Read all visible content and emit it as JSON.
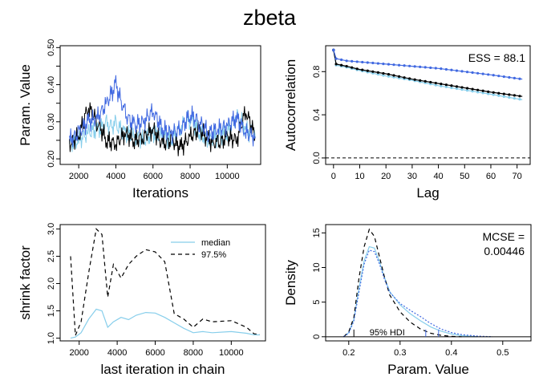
{
  "page_title": "zbeta",
  "colors": {
    "chain1": "#87CEEB",
    "chain2": "#000000",
    "chain3": "#4169E1",
    "frame": "#000000"
  },
  "chart_data": [
    {
      "id": "trace",
      "type": "line",
      "xlabel": "Iterations",
      "ylabel": "Param. Value",
      "xticks": [
        2000,
        4000,
        6000,
        8000,
        10000
      ],
      "yticks": [
        0.2,
        0.25,
        0.3,
        0.35,
        0.4,
        0.45,
        0.5
      ],
      "ytick_labels": [
        "0.20",
        "",
        "0.30",
        "",
        "0.40",
        "",
        "0.50"
      ],
      "xlim": [
        1000,
        11800
      ],
      "ylim": [
        0.185,
        0.505
      ],
      "series": [
        {
          "color": "#87CEEB",
          "x": [
            1500,
            2000,
            2500,
            3000,
            3500,
            4000,
            4500,
            5000,
            5500,
            6000,
            6500,
            7000,
            7500,
            8000,
            8500,
            9000,
            9500,
            10000,
            10500,
            11000,
            11500
          ],
          "y": [
            0.24,
            0.25,
            0.27,
            0.28,
            0.29,
            0.29,
            0.27,
            0.26,
            0.25,
            0.27,
            0.26,
            0.25,
            0.29,
            0.31,
            0.27,
            0.25,
            0.26,
            0.27,
            0.32,
            0.28,
            0.26
          ]
        },
        {
          "color": "#000000",
          "x": [
            1500,
            2000,
            2500,
            3000,
            3500,
            4000,
            4500,
            5000,
            5500,
            6000,
            6500,
            7000,
            7500,
            8000,
            8500,
            9000,
            9500,
            10000,
            10500,
            11000,
            11500
          ],
          "y": [
            0.24,
            0.26,
            0.34,
            0.3,
            0.25,
            0.24,
            0.27,
            0.25,
            0.26,
            0.28,
            0.24,
            0.25,
            0.23,
            0.26,
            0.28,
            0.25,
            0.24,
            0.26,
            0.25,
            0.33,
            0.26
          ]
        },
        {
          "color": "#4169E1",
          "x": [
            1500,
            2000,
            2500,
            3000,
            3500,
            4000,
            4500,
            5000,
            5500,
            6000,
            6500,
            7000,
            7500,
            8000,
            8500,
            9000,
            9500,
            10000,
            10500,
            11000,
            11500
          ],
          "y": [
            0.25,
            0.27,
            0.3,
            0.31,
            0.35,
            0.4,
            0.32,
            0.29,
            0.3,
            0.33,
            0.28,
            0.27,
            0.28,
            0.32,
            0.3,
            0.27,
            0.28,
            0.29,
            0.31,
            0.27,
            0.26
          ]
        }
      ]
    },
    {
      "id": "autocorrelation",
      "type": "line",
      "xlabel": "Lag",
      "ylabel": "Autocorrelation",
      "xticks": [
        0,
        10,
        20,
        30,
        40,
        50,
        60,
        70
      ],
      "yticks": [
        0.0,
        0.4,
        0.8
      ],
      "ytick_labels": [
        "0.0",
        "0.4",
        "0.8"
      ],
      "xlim": [
        -3,
        75
      ],
      "ylim": [
        -0.06,
        1.04
      ],
      "annotation": "ESS = 88.1",
      "reference_line": 0,
      "series": [
        {
          "color": "#87CEEB",
          "x": [
            0,
            1,
            5,
            10,
            20,
            30,
            40,
            50,
            60,
            72
          ],
          "y": [
            1.0,
            0.86,
            0.84,
            0.81,
            0.76,
            0.72,
            0.67,
            0.63,
            0.59,
            0.54
          ]
        },
        {
          "color": "#000000",
          "x": [
            0,
            1,
            5,
            10,
            20,
            30,
            40,
            50,
            60,
            72
          ],
          "y": [
            1.0,
            0.87,
            0.85,
            0.82,
            0.78,
            0.73,
            0.69,
            0.65,
            0.61,
            0.57
          ]
        },
        {
          "color": "#4169E1",
          "x": [
            0,
            1,
            5,
            10,
            20,
            30,
            40,
            50,
            60,
            72
          ],
          "y": [
            1.0,
            0.92,
            0.9,
            0.89,
            0.87,
            0.85,
            0.83,
            0.8,
            0.77,
            0.73
          ]
        }
      ]
    },
    {
      "id": "shrink",
      "type": "line",
      "xlabel": "last iteration in chain",
      "ylabel": "shrink factor",
      "xticks": [
        2000,
        4000,
        6000,
        8000,
        10000
      ],
      "yticks": [
        1.0,
        1.5,
        2.0,
        2.5,
        3.0
      ],
      "ytick_labels": [
        "1.0",
        "1.5",
        "2.0",
        "2.5",
        "3.0"
      ],
      "xlim": [
        1000,
        11800
      ],
      "ylim": [
        0.95,
        3.08
      ],
      "legend": {
        "position": "top-right",
        "labels": [
          "median",
          "97.5%"
        ]
      },
      "series": [
        {
          "name": "median",
          "color": "#87CEEB",
          "dash": "",
          "x": [
            1550,
            1800,
            2100,
            2500,
            2900,
            3200,
            3500,
            3800,
            4200,
            4600,
            5000,
            5500,
            6000,
            6500,
            7000,
            7500,
            8000,
            8500,
            9000,
            10000,
            10800,
            11200,
            11500
          ],
          "y": [
            1.0,
            1.02,
            1.1,
            1.35,
            1.53,
            1.5,
            1.2,
            1.3,
            1.38,
            1.34,
            1.42,
            1.47,
            1.46,
            1.38,
            1.28,
            1.18,
            1.1,
            1.12,
            1.1,
            1.12,
            1.09,
            1.06,
            1.06
          ]
        },
        {
          "name": "97.5%",
          "color": "#000000",
          "dash": "5,4",
          "x": [
            1550,
            1800,
            2100,
            2500,
            2900,
            3200,
            3500,
            3800,
            4200,
            4600,
            5000,
            5500,
            6000,
            6500,
            7000,
            7500,
            8000,
            8500,
            9000,
            10000,
            10800,
            11200,
            11500
          ],
          "y": [
            2.5,
            1.05,
            1.3,
            2.2,
            3.0,
            2.9,
            1.75,
            2.35,
            2.1,
            2.35,
            2.5,
            2.62,
            2.58,
            2.4,
            1.45,
            1.35,
            1.2,
            1.35,
            1.3,
            1.32,
            1.2,
            1.08,
            1.07
          ]
        }
      ]
    },
    {
      "id": "density",
      "type": "line",
      "xlabel": "Param. Value",
      "ylabel": "Density",
      "xticks": [
        0.2,
        0.3,
        0.4,
        0.5
      ],
      "yticks": [
        0,
        5,
        10,
        15
      ],
      "ytick_labels": [
        "0",
        "5",
        "10",
        "15"
      ],
      "xlim": [
        0.155,
        0.555
      ],
      "ylim": [
        -0.6,
        16.2
      ],
      "annotation_lines": [
        "MCSE =",
        "0.00446"
      ],
      "hdi_label": "95% HDI",
      "hdi_marks": [
        0.21,
        0.35,
        0.375
      ],
      "series": [
        {
          "color": "#87CEEB",
          "dash": "",
          "x": [
            0.19,
            0.2,
            0.21,
            0.22,
            0.23,
            0.24,
            0.25,
            0.26,
            0.27,
            0.28,
            0.3,
            0.32,
            0.34,
            0.36,
            0.38,
            0.4,
            0.42,
            0.45
          ],
          "y": [
            0,
            0.6,
            2.5,
            7,
            11,
            13,
            12.8,
            10.8,
            8.5,
            6.5,
            4.6,
            3.3,
            2.3,
            1.4,
            0.8,
            0.4,
            0.15,
            0
          ]
        },
        {
          "color": "#000000",
          "dash": "5,4",
          "x": [
            0.19,
            0.2,
            0.21,
            0.22,
            0.23,
            0.24,
            0.25,
            0.26,
            0.27,
            0.28,
            0.3,
            0.32,
            0.34,
            0.36,
            0.38,
            0.4,
            0.42
          ],
          "y": [
            0,
            0.7,
            2.8,
            8.5,
            13,
            15.5,
            14.5,
            11.5,
            8.5,
            6,
            3.6,
            2.1,
            1.1,
            0.5,
            0.2,
            0.05,
            0
          ]
        },
        {
          "color": "#4169E1",
          "dash": "2,2",
          "x": [
            0.19,
            0.2,
            0.21,
            0.22,
            0.23,
            0.24,
            0.25,
            0.26,
            0.27,
            0.28,
            0.3,
            0.32,
            0.34,
            0.36,
            0.38,
            0.4,
            0.42,
            0.45,
            0.48
          ],
          "y": [
            0,
            0.5,
            2.3,
            6.5,
            10.5,
            12.5,
            12.3,
            10.5,
            8.2,
            6.4,
            4.8,
            3.8,
            2.9,
            1.9,
            1.1,
            0.6,
            0.3,
            0.1,
            0
          ]
        }
      ]
    }
  ]
}
